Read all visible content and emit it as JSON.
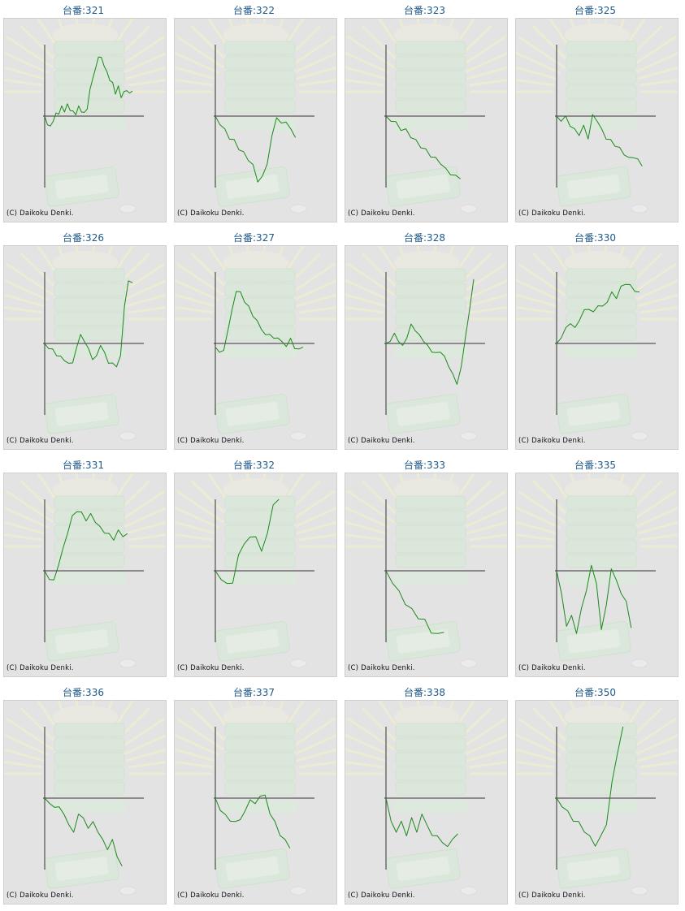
{
  "page": {
    "copyright": "(C) Daikoku Denki."
  },
  "colors": {
    "line": "#1a8a1a",
    "axis": "#333333",
    "label": "#1f5a8c",
    "background": "#e3e3e3"
  },
  "chart_data": [
    {
      "type": "line",
      "title": "台番:321",
      "y": [
        0,
        -0.1,
        -0.16,
        -0.05,
        0.02,
        0.05,
        0.12,
        0.08,
        0.15,
        0.1,
        0.05,
        0.04,
        0.12,
        0.08,
        0.03,
        0.12,
        0.35,
        0.55,
        0.65,
        0.85,
        0.8,
        0.72,
        0.6,
        0.52,
        0.45,
        0.33,
        0.4,
        0.28,
        0.32,
        0.38,
        0.3,
        0.35
      ]
    },
    {
      "type": "line",
      "title": "台番:322",
      "y": [
        0,
        -0.1,
        -0.2,
        -0.3,
        -0.35,
        -0.45,
        -0.52,
        -0.6,
        -0.7,
        -0.9,
        -0.86,
        -0.65,
        -0.3,
        0,
        -0.12,
        -0.06,
        -0.2,
        -0.3
      ]
    },
    {
      "type": "line",
      "title": "台番:323",
      "y": [
        0,
        -0.05,
        -0.1,
        -0.18,
        -0.2,
        -0.28,
        -0.35,
        -0.42,
        -0.48,
        -0.55,
        -0.6,
        -0.65,
        -0.75,
        -0.8,
        -0.85,
        -0.88
      ]
    },
    {
      "type": "line",
      "title": "台番:325",
      "y": [
        0,
        -0.05,
        -0.02,
        -0.12,
        -0.2,
        -0.25,
        -0.15,
        -0.3,
        0,
        -0.05,
        -0.2,
        -0.3,
        -0.35,
        -0.4,
        -0.46,
        -0.52,
        -0.6,
        -0.56,
        -0.62,
        -0.7
      ]
    },
    {
      "type": "line",
      "title": "台番:326",
      "y": [
        0,
        -0.05,
        -0.1,
        -0.15,
        -0.2,
        -0.22,
        -0.3,
        -0.25,
        -0.08,
        0.15,
        0,
        -0.05,
        -0.25,
        -0.15,
        -0.05,
        -0.1,
        -0.3,
        -0.25,
        -0.35,
        -0.15,
        0.5,
        0.9,
        0.85
      ]
    },
    {
      "type": "line",
      "title": "台番:327",
      "y": [
        -0.05,
        -0.1,
        -0.12,
        0.2,
        0.45,
        0.75,
        0.7,
        0.6,
        0.5,
        0.4,
        0.3,
        0.22,
        0.1,
        0.15,
        0.05,
        0.1,
        0,
        -0.02,
        0.05,
        -0.05,
        -0.1,
        -0.05
      ]
    },
    {
      "type": "line",
      "title": "台番:328",
      "y": [
        0,
        0.05,
        0.12,
        0.05,
        -0.05,
        0.1,
        0.25,
        0.2,
        0.1,
        0.05,
        -0.05,
        -0.1,
        -0.15,
        -0.1,
        -0.2,
        -0.3,
        -0.45,
        -0.55,
        -0.35,
        0.1,
        0.45,
        0.9
      ]
    },
    {
      "type": "line",
      "title": "台番:330",
      "y": [
        0,
        0.1,
        0.2,
        0.3,
        0.2,
        0.35,
        0.45,
        0.5,
        0.42,
        0.55,
        0.5,
        0.6,
        0.7,
        0.65,
        0.78,
        0.85,
        0.8,
        0.75,
        0.72
      ]
    },
    {
      "type": "line",
      "title": "台番:331",
      "y": [
        0,
        -0.1,
        -0.15,
        0.1,
        0.3,
        0.55,
        0.75,
        0.85,
        0.8,
        0.72,
        0.78,
        0.7,
        0.6,
        0.55,
        0.5,
        0.45,
        0.55,
        0.5,
        0.52
      ]
    },
    {
      "type": "line",
      "title": "台番:332",
      "y": [
        0,
        -0.1,
        -0.2,
        -0.15,
        0.2,
        0.4,
        0.45,
        0.5,
        0.25,
        0.55,
        0.9,
        1.0
      ]
    },
    {
      "type": "line",
      "title": "台番:333",
      "y": [
        0,
        -0.15,
        -0.3,
        -0.45,
        -0.55,
        -0.65,
        -0.7,
        -0.85,
        -0.9,
        -0.86
      ]
    },
    {
      "type": "line",
      "title": "台番:335",
      "y": [
        0,
        -0.3,
        -0.8,
        -0.6,
        -0.9,
        -0.5,
        -0.3,
        0.1,
        -0.2,
        -0.8,
        -0.5,
        0.05,
        -0.15,
        -0.3,
        -0.45,
        -0.8
      ]
    },
    {
      "type": "line",
      "title": "台番:336",
      "y": [
        0,
        -0.05,
        -0.15,
        -0.1,
        -0.25,
        -0.35,
        -0.5,
        -0.2,
        -0.3,
        -0.4,
        -0.35,
        -0.45,
        -0.6,
        -0.7,
        -0.6,
        -0.8,
        -0.95
      ]
    },
    {
      "type": "line",
      "title": "台番:337",
      "y": [
        0,
        -0.15,
        -0.25,
        -0.3,
        -0.35,
        -0.28,
        -0.2,
        0,
        -0.1,
        0.05,
        0.02,
        -0.2,
        -0.35,
        -0.5,
        -0.6,
        -0.7
      ]
    },
    {
      "type": "line",
      "title": "台番:338",
      "y": [
        0,
        -0.3,
        -0.5,
        -0.3,
        -0.55,
        -0.25,
        -0.5,
        -0.2,
        -0.4,
        -0.5,
        -0.55,
        -0.6,
        -0.7,
        -0.55,
        -0.5
      ]
    },
    {
      "type": "line",
      "title": "台番:350",
      "y": [
        0,
        -0.1,
        -0.2,
        -0.3,
        -0.35,
        -0.45,
        -0.55,
        -0.65,
        -0.55,
        -0.35,
        0.2,
        0.65,
        1.0
      ]
    }
  ]
}
